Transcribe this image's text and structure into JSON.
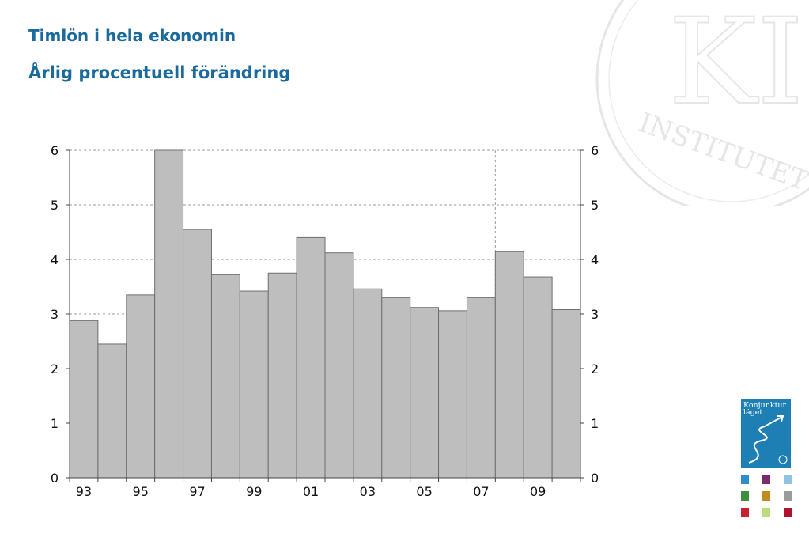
{
  "title": "Timlön i hela ekonomin",
  "subtitle": "Årlig procentuell förändring",
  "logo": {
    "text": "Konjunktur\nläget"
  },
  "watermark": {
    "text": "INSTITUTET",
    "monogram": "KI"
  },
  "tile_colors": [
    "#2d8fc8",
    "#7b2a72",
    "#8fc3e0",
    "#3f8f3f",
    "#c28a1a",
    "#9a9a9a",
    "#c8202f",
    "#b9dc7c",
    "#b0132f"
  ],
  "chart_data": {
    "type": "bar",
    "categories": [
      "93",
      "94",
      "95",
      "96",
      "97",
      "98",
      "99",
      "00",
      "01",
      "02",
      "03",
      "04",
      "05",
      "06",
      "07",
      "08",
      "09",
      "10"
    ],
    "x_tick_labels": [
      "93",
      "95",
      "97",
      "99",
      "01",
      "03",
      "05",
      "07",
      "09"
    ],
    "values": [
      2.88,
      2.45,
      3.35,
      6.0,
      4.55,
      3.72,
      3.42,
      3.75,
      4.4,
      4.12,
      3.46,
      3.3,
      3.12,
      3.06,
      3.3,
      4.15,
      3.68,
      3.08
    ],
    "ylim": [
      0,
      6
    ],
    "yticks": [
      0,
      1,
      2,
      3,
      4,
      5,
      6
    ],
    "forecast_start": "07",
    "grid": true,
    "bar_color": "#bebebe",
    "bar_edge_color": "#6e6e6e",
    "xlabel": "",
    "ylabel": ""
  }
}
